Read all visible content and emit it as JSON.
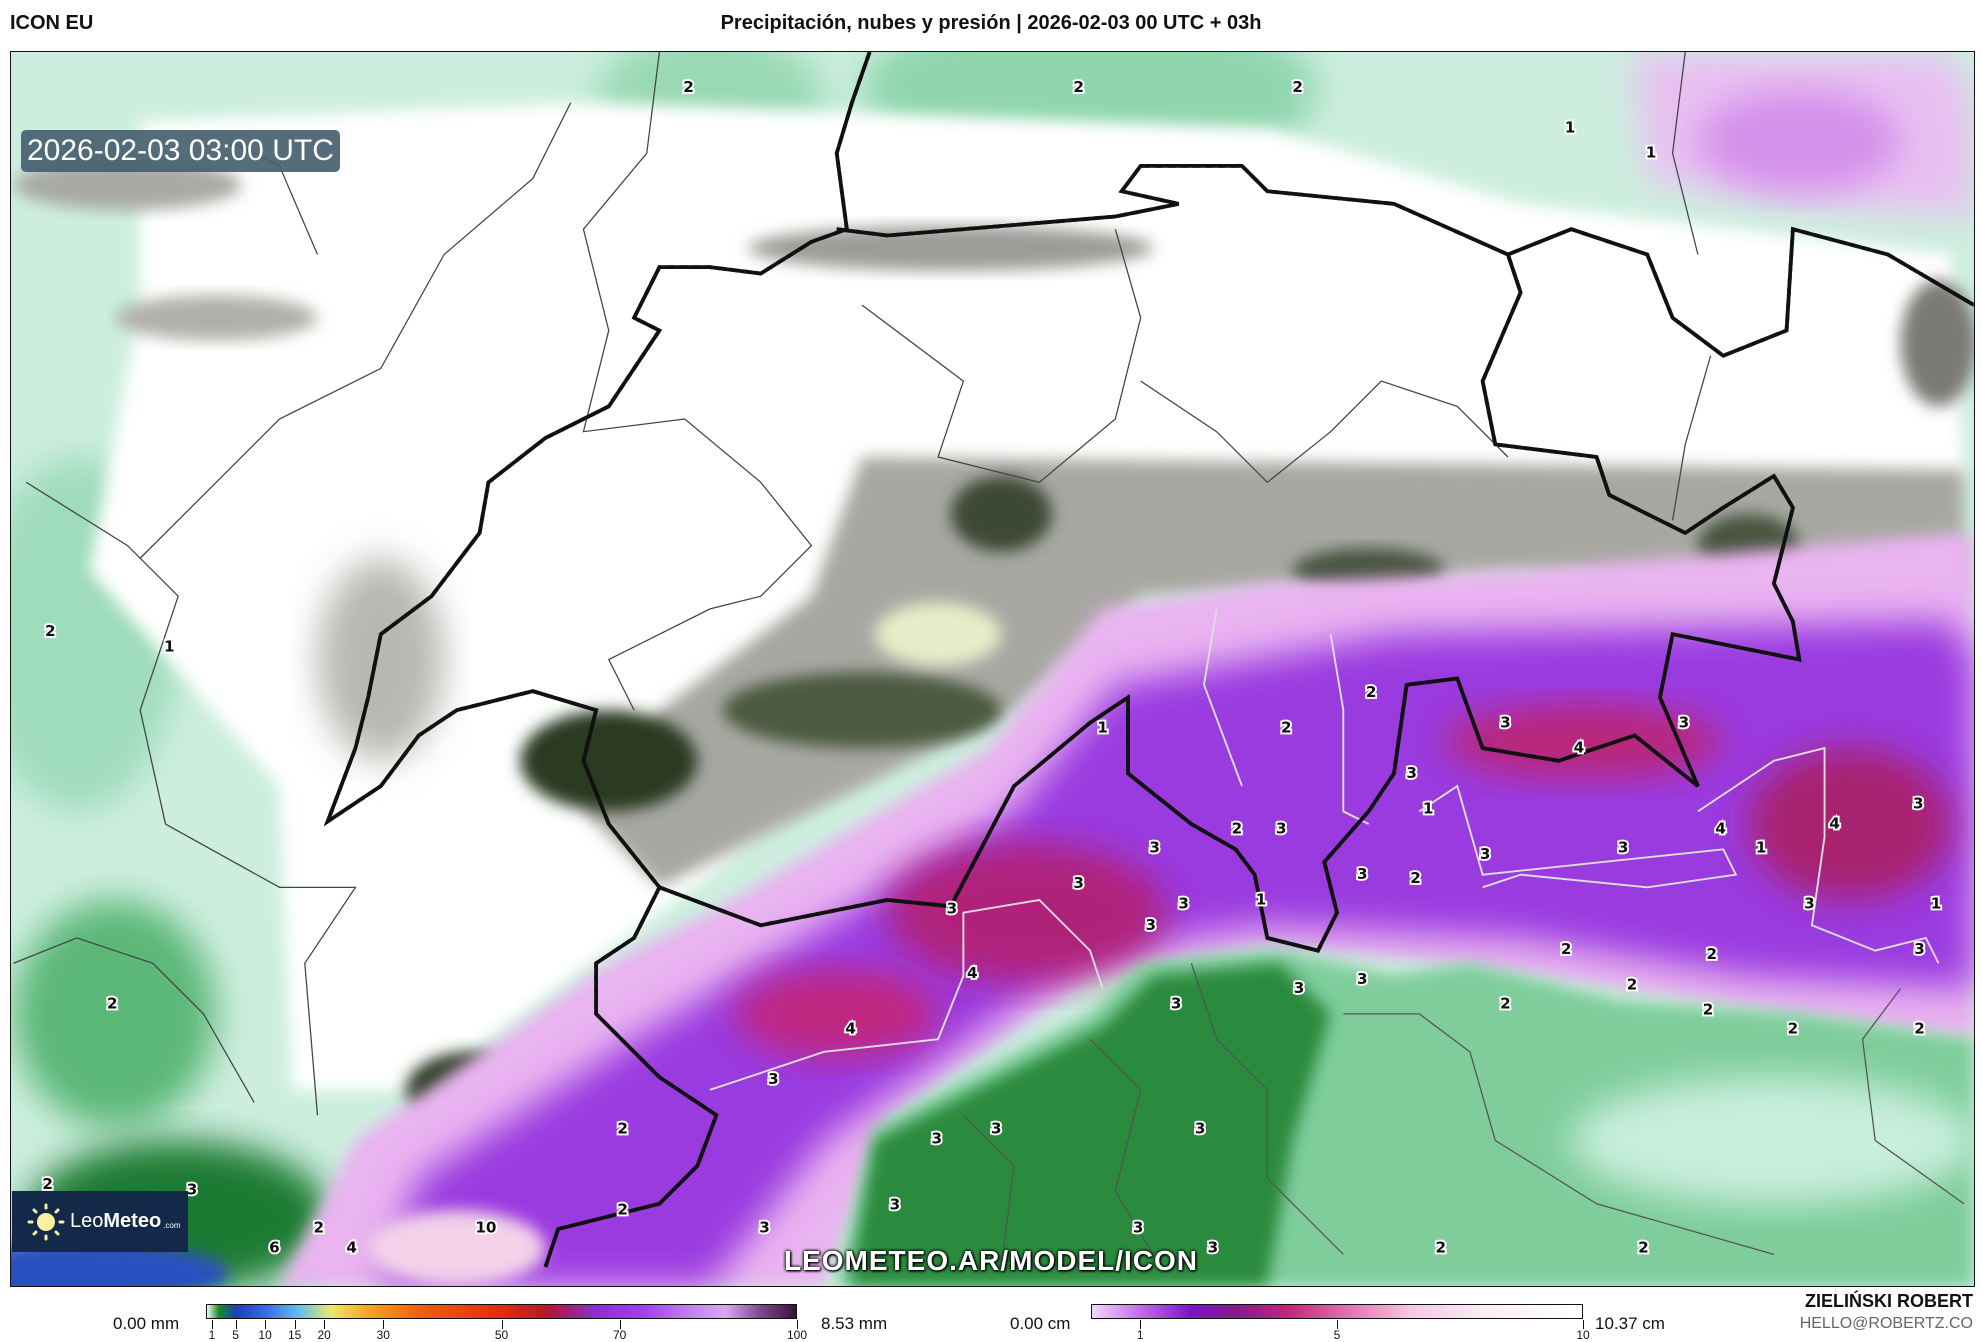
{
  "header": {
    "model": "ICON EU",
    "title": "Precipitación, nubes y presión | 2026-02-03 00 UTC + 03h"
  },
  "map": {
    "timestamp": "2026-02-03 03:00 UTC",
    "watermark": "LEOMETEO.AR/MODEL/ICON",
    "logo": {
      "part1": "Leo",
      "part2": "Meteo",
      "part3": ".com",
      "icon": "sun-icon"
    },
    "border_color": "#f0e020",
    "snow_labels": [
      "2",
      "2",
      "2",
      "1",
      "1",
      "2",
      "1",
      "1",
      "2",
      "2",
      "3",
      "3",
      "4",
      "3",
      "1",
      "3",
      "3",
      "2",
      "4",
      "1",
      "4",
      "3",
      "3",
      "2",
      "3",
      "3",
      "3",
      "1",
      "3",
      "3",
      "3",
      "1",
      "3",
      "2",
      "2",
      "3",
      "4",
      "3",
      "3",
      "2",
      "2",
      "3",
      "2",
      "2",
      "4",
      "2",
      "2",
      "3",
      "2",
      "3",
      "3",
      "3",
      "2",
      "3",
      "3",
      "2",
      "2",
      "10",
      "3",
      "3",
      "6",
      "4",
      "3",
      "2",
      "2"
    ]
  },
  "legend": {
    "precip": {
      "min": "0.00 mm",
      "max": "8.53 mm",
      "ticks": [
        "1",
        "5",
        "10",
        "15",
        "20",
        "30",
        "50",
        "70",
        "100"
      ],
      "range": [
        0,
        100
      ]
    },
    "snow": {
      "min": "0.00 cm",
      "max": "10.37 cm",
      "ticks": [
        "1",
        "5",
        "10"
      ],
      "range": [
        0,
        10
      ]
    }
  },
  "credit": {
    "author": "ZIELIŃSKI ROBERT",
    "email": "HELLO@ROBERTZ.CO"
  }
}
